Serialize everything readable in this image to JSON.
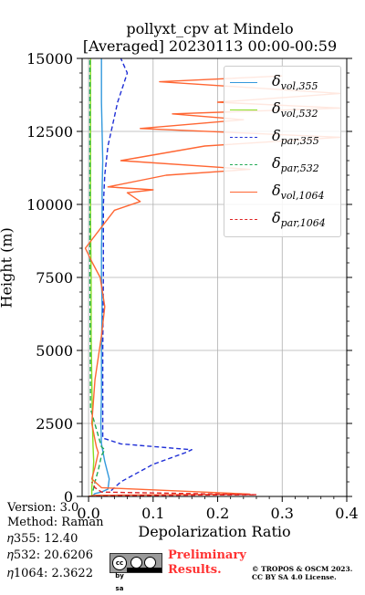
{
  "chart_data": {
    "type": "line",
    "title": "pollyxt_cpv at Mindelo",
    "subtitle": "[Averaged] 20230113 00:00-00:59",
    "xlabel": "Depolarization Ratio",
    "ylabel": "Height (m)",
    "xlim": [
      -0.01,
      0.4
    ],
    "ylim": [
      0,
      15000
    ],
    "xticks": [
      "0.0",
      "0.1",
      "0.2",
      "0.3",
      "0.4"
    ],
    "yticks": [
      "0",
      "2500",
      "5000",
      "7500",
      "10000",
      "12500",
      "15000"
    ],
    "grid": true,
    "legend_position": "top-right",
    "series": [
      {
        "name": "δvol,355",
        "color": "#3399dd",
        "dash": "solid",
        "x": [
          0.0,
          0.005,
          0.01,
          0.02,
          0.03,
          0.032,
          0.025,
          0.02,
          0.019,
          0.02,
          0.02,
          0.021,
          0.02,
          0.02,
          0.021,
          0.021,
          0.022,
          0.021,
          0.02,
          0.02
        ],
        "y": [
          0,
          0,
          100,
          150,
          250,
          600,
          1200,
          1800,
          2500,
          3500,
          5000,
          6500,
          7500,
          8500,
          9500,
          10500,
          11500,
          12500,
          13500,
          15000
        ]
      },
      {
        "name": "δvol,532",
        "color": "#88dd22",
        "dash": "solid",
        "x": [
          0.0,
          0.005,
          0.005,
          0.007,
          0.008,
          0.007,
          0.006,
          0.005,
          0.004,
          0.004,
          0.003,
          0.003,
          0.003,
          0.003
        ],
        "y": [
          0,
          0,
          300,
          800,
          1200,
          1700,
          2500,
          4000,
          5500,
          7500,
          9500,
          11500,
          13500,
          15000
        ]
      },
      {
        "name": "δpar,355",
        "color": "#1f2fd6",
        "dash": "dashed",
        "x": [
          0.035,
          0.05,
          0.1,
          0.15,
          0.16,
          0.05,
          0.022,
          0.022,
          0.023,
          0.023,
          0.025,
          0.03,
          0.045,
          0.06,
          0.05
        ],
        "y": [
          200,
          500,
          1100,
          1500,
          1600,
          1800,
          2000,
          5000,
          7500,
          10000,
          11000,
          12000,
          13500,
          14500,
          15000
        ]
      },
      {
        "name": "δpar,532",
        "color": "#22aa55",
        "dash": "dashed",
        "x": [
          0.007,
          0.01,
          0.015,
          0.02,
          0.025,
          0.02,
          0.003,
          0.002,
          0.002
        ],
        "y": [
          200,
          500,
          900,
          1400,
          1600,
          1700,
          3000,
          7500,
          15000
        ]
      },
      {
        "name": "δvol,1064",
        "color": "#ff6633",
        "dash": "solid",
        "x": [
          0.0,
          0.01,
          0.25,
          0.02,
          0.005,
          0.01,
          0.015,
          0.012,
          0.005,
          0.01,
          0.02,
          0.025,
          0.018,
          0.006,
          -0.005,
          0.04,
          0.08,
          0.06,
          0.1,
          0.03,
          0.12,
          0.25,
          0.05,
          0.18,
          0.39,
          0.08,
          0.24,
          0.13,
          0.39,
          0.2,
          0.39,
          0.11,
          0.3
        ],
        "y": [
          0,
          40,
          80,
          300,
          600,
          1000,
          1500,
          1700,
          2500,
          4000,
          5500,
          6500,
          7500,
          8000,
          8500,
          9800,
          10100,
          10400,
          10500,
          10600,
          11000,
          11200,
          11500,
          12000,
          12300,
          12600,
          12900,
          13100,
          13300,
          13500,
          13800,
          14200,
          14400
        ]
      },
      {
        "name": "δpar,1064",
        "color": "#dd2222",
        "dash": "dashed",
        "x": [
          0.0,
          0.05,
          0.26,
          0.02,
          0.01,
          0.005
        ],
        "y": [
          0,
          30,
          60,
          150,
          300,
          500
        ]
      }
    ]
  },
  "info": {
    "version": "Version: 3.0",
    "method": "Method: Raman",
    "eta355": "𝜂355:  12.40",
    "eta532": "𝜂532: 20.6206",
    "eta1064": "𝜂1064: 2.3622"
  },
  "footer": {
    "preliminary": "Preliminary Results.",
    "copyright": "© TROPOS & OSCM 2023. CC BY SA 4.0 License.",
    "license_badge": "cc by sa"
  }
}
